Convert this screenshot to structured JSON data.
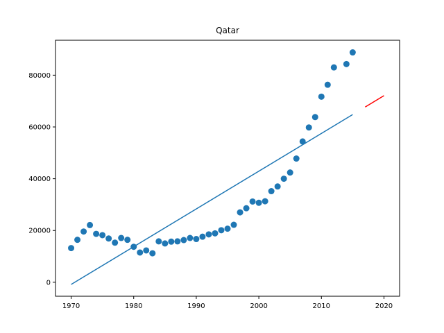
{
  "chart_data": {
    "type": "scatter",
    "title": "Qatar",
    "xlabel": "",
    "ylabel": "",
    "xlim": [
      1967.5,
      2022.5
    ],
    "ylim": [
      -5400,
      93500
    ],
    "xticks": [
      1970,
      1980,
      1990,
      2000,
      2010,
      2020
    ],
    "yticks": [
      0,
      20000,
      40000,
      60000,
      80000
    ],
    "grid": false,
    "legend": false,
    "colors": {
      "points": "#1f77b4",
      "fit_line": "#1f77b4",
      "forecast_line": "#ff0000"
    },
    "series": [
      {
        "kind": "scatter",
        "x": [
          1970,
          1971,
          1972,
          1973,
          1974,
          1975,
          1976,
          1977,
          1978,
          1979,
          1980,
          1981,
          1982,
          1983,
          1984,
          1985,
          1986,
          1987,
          1988,
          1989,
          1990,
          1991,
          1992,
          1993,
          1994,
          1995,
          1996,
          1997,
          1998,
          1999,
          2000,
          2001,
          2002,
          2003,
          2004,
          2005,
          2006,
          2007,
          2008,
          2009,
          2010,
          2011,
          2012,
          2014,
          2015
        ],
        "y": [
          13200,
          16400,
          19600,
          22100,
          18700,
          18200,
          16900,
          15300,
          17100,
          16400,
          13700,
          11500,
          12300,
          11200,
          15800,
          15000,
          15700,
          15800,
          16300,
          17100,
          16700,
          17600,
          18500,
          18900,
          20100,
          20700,
          22200,
          27000,
          28600,
          31200,
          30700,
          31300,
          35200,
          37000,
          40000,
          42400,
          47800,
          54400,
          59800,
          63800,
          71700,
          76300,
          83000,
          84300,
          88800
        ]
      },
      {
        "kind": "line",
        "x": [
          1970,
          2015
        ],
        "y": [
          -850,
          64800
        ]
      },
      {
        "kind": "line",
        "x": [
          2017,
          2020
        ],
        "y": [
          67700,
          72100
        ]
      }
    ]
  }
}
